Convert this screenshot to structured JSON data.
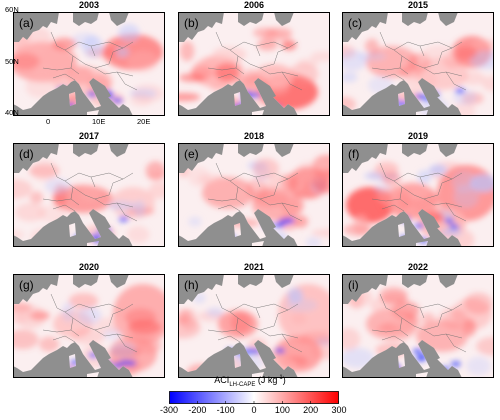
{
  "axes": {
    "y_ticks": [
      "60N",
      "50N",
      "40N"
    ],
    "x_ticks": [
      "0",
      "10E",
      "20E"
    ]
  },
  "panels": [
    {
      "year": "2003",
      "label": "(a)",
      "pattern": "west",
      "strength": 0.55
    },
    {
      "year": "2006",
      "label": "(b)",
      "pattern": "southeast",
      "strength": 0.85
    },
    {
      "year": "2015",
      "label": "(c)",
      "pattern": "mixed",
      "strength": 0.45
    },
    {
      "year": "2017",
      "label": "(d)",
      "pattern": "weak",
      "strength": 0.35
    },
    {
      "year": "2018",
      "label": "(e)",
      "pattern": "mixed",
      "strength": 0.5
    },
    {
      "year": "2019",
      "label": "(f)",
      "pattern": "strong",
      "strength": 0.95
    },
    {
      "year": "2020",
      "label": "(g)",
      "pattern": "east",
      "strength": 0.55
    },
    {
      "year": "2021",
      "label": "(h)",
      "pattern": "east",
      "strength": 0.75
    },
    {
      "year": "2022",
      "label": "(i)",
      "pattern": "mixed",
      "strength": 0.45
    }
  ],
  "colorbar": {
    "title_main": "ACI",
    "title_sub": "LH-CAPE",
    "title_units": " (J kg",
    "title_exp": "-1",
    "title_close": ")",
    "ticks": [
      "-300",
      "-200",
      "-100",
      "0",
      "100",
      "200",
      "300"
    ],
    "vmin": -300,
    "vmax": 300,
    "colors": [
      "#0000ff",
      "#ffffff",
      "#ff0000"
    ]
  },
  "land_color": "#ffffff",
  "sea_color": "#8f8f8f"
}
